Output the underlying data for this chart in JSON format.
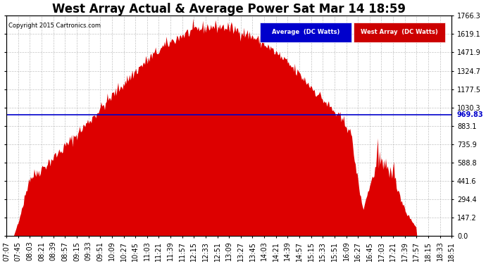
{
  "title": "West Array Actual & Average Power Sat Mar 14 18:59",
  "copyright": "Copyright 2015 Cartronics.com",
  "legend_labels": [
    "Average  (DC Watts)",
    "West Array  (DC Watts)"
  ],
  "legend_colors": [
    "#0000cc",
    "#cc0000"
  ],
  "ymin": 0.0,
  "ymax": 1766.3,
  "yticks": [
    0.0,
    147.2,
    294.4,
    441.6,
    588.8,
    735.9,
    883.1,
    1030.3,
    1177.5,
    1324.7,
    1471.9,
    1619.1,
    1766.3
  ],
  "hline_value": 969.83,
  "hline_label": "969.83",
  "hline_color": "#0000cc",
  "background_color": "#ffffff",
  "plot_bg_color": "#ffffff",
  "grid_color": "#aaaaaa",
  "area_color_west": "#dd0000",
  "x_labels": [
    "07:07",
    "07:45",
    "08:03",
    "08:21",
    "08:39",
    "08:57",
    "09:15",
    "09:33",
    "09:51",
    "10:09",
    "10:27",
    "10:45",
    "11:03",
    "11:21",
    "11:39",
    "11:57",
    "12:15",
    "12:33",
    "12:51",
    "13:09",
    "13:27",
    "13:45",
    "14:03",
    "14:21",
    "14:39",
    "14:57",
    "15:15",
    "15:33",
    "15:51",
    "16:09",
    "16:27",
    "16:45",
    "17:03",
    "17:21",
    "17:39",
    "17:57",
    "18:15",
    "18:33",
    "18:51"
  ],
  "title_fontsize": 12,
  "tick_fontsize": 7,
  "label_fontsize": 7
}
